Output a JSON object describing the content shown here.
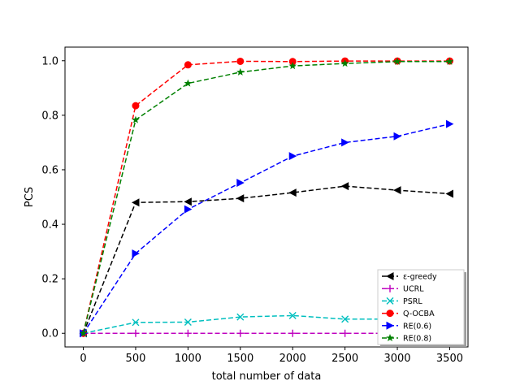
{
  "chart_data": {
    "type": "line",
    "title": "",
    "xlabel": "total number of data",
    "ylabel": "PCS",
    "xlim": [
      -175,
      3675
    ],
    "ylim": [
      -0.05,
      1.05
    ],
    "x": [
      0,
      500,
      1000,
      1500,
      2000,
      2500,
      3000,
      3500
    ],
    "xticks": [
      0,
      500,
      1000,
      1500,
      2000,
      2500,
      3000,
      3500
    ],
    "yticks": [
      0.0,
      0.2,
      0.4,
      0.6,
      0.8,
      1.0
    ],
    "xtick_labels": [
      "0",
      "500",
      "1000",
      "1500",
      "2000",
      "2500",
      "3000",
      "3500"
    ],
    "ytick_labels": [
      "0.0",
      "0.2",
      "0.4",
      "0.6",
      "0.8",
      "1.0"
    ],
    "grid": false,
    "legend_position": "lower-right",
    "series": [
      {
        "name": "ε-greedy",
        "color": "#000000",
        "marker": "triangle-left",
        "values": [
          0.0,
          0.48,
          0.483,
          0.495,
          0.516,
          0.54,
          0.525,
          0.512
        ]
      },
      {
        "name": "UCRL",
        "color": "#bf00bf",
        "marker": "plus",
        "values": [
          0.0,
          0.0,
          0.0,
          0.0,
          0.0,
          0.0,
          0.0,
          0.0
        ]
      },
      {
        "name": "PSRL",
        "color": "#00bfbf",
        "marker": "x",
        "values": [
          0.0,
          0.04,
          0.041,
          0.06,
          0.065,
          0.052,
          0.052,
          0.055
        ]
      },
      {
        "name": "Q-OCBA",
        "color": "#ff0000",
        "marker": "circle",
        "values": [
          0.0,
          0.835,
          0.985,
          0.998,
          0.997,
          0.999,
          0.999,
          0.999
        ]
      },
      {
        "name": "RE(0.6)",
        "color": "#0000ff",
        "marker": "triangle-right",
        "values": [
          0.0,
          0.293,
          0.455,
          0.552,
          0.65,
          0.7,
          0.723,
          0.768
        ]
      },
      {
        "name": "RE(0.8)",
        "color": "#008000",
        "marker": "star",
        "values": [
          0.0,
          0.783,
          0.917,
          0.958,
          0.981,
          0.99,
          0.997,
          0.997
        ]
      }
    ]
  }
}
